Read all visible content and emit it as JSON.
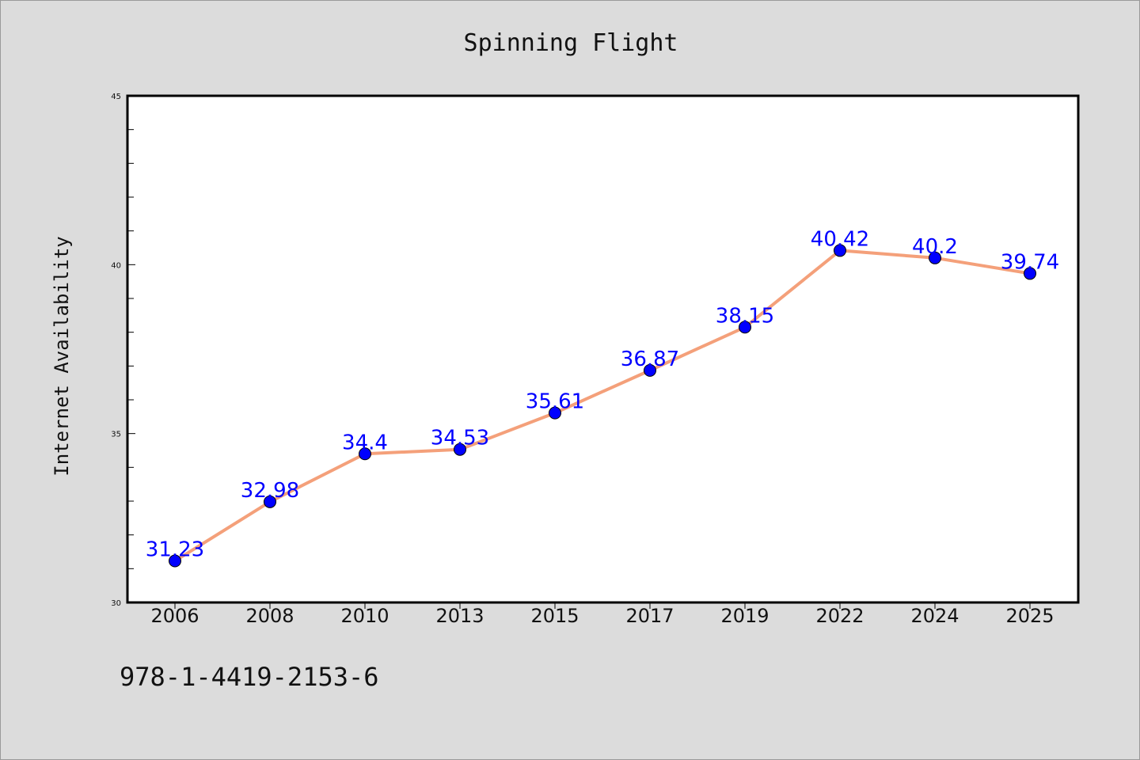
{
  "chart_data": {
    "type": "line",
    "title": "Spinning Flight",
    "xlabel": "",
    "ylabel": "Internet Availability",
    "categories": [
      "2006",
      "2008",
      "2010",
      "2013",
      "2015",
      "2017",
      "2019",
      "2022",
      "2024",
      "2025"
    ],
    "series": [
      {
        "values": [
          31.23,
          32.98,
          34.4,
          34.53,
          35.61,
          36.87,
          38.15,
          40.42,
          40.2,
          39.74
        ],
        "data_labels": [
          "31.23",
          "32.98",
          "34.4",
          "34.53",
          "35.61",
          "36.87",
          "38.15",
          "40.42",
          "40.2",
          "39.74"
        ]
      }
    ],
    "ylim": [
      30,
      45
    ],
    "yticks": [
      "30",
      "35",
      "40",
      "45"
    ],
    "grid": false,
    "legend": "none",
    "colors": {
      "line": "#f4a07a",
      "marker": "#0000ff",
      "data_label": "#0000ff",
      "background": "#dcdcdc",
      "plot_area": "#ffffff"
    }
  },
  "footer": {
    "text": "978-1-4419-2153-6"
  }
}
